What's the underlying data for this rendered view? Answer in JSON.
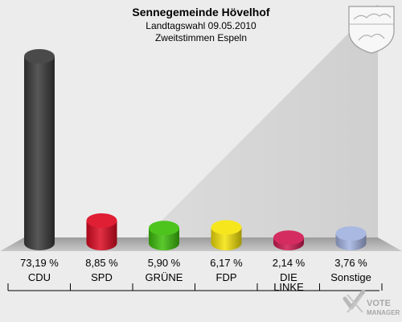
{
  "chart_data": {
    "type": "bar",
    "title": "Sennegemeinde Hövelhof",
    "subtitle": "Landtagswahl 09.05.2010",
    "subtitle2": "Zweitstimmen Espeln",
    "categories": [
      "CDU",
      "SPD",
      "GRÜNE",
      "FDP",
      "DIE LINKE",
      "Sonstige"
    ],
    "values": [
      73.19,
      8.85,
      5.9,
      6.17,
      2.14,
      3.76
    ],
    "value_labels": [
      "73,19 %",
      "8,85 %",
      "5,90 %",
      "6,17 %",
      "2,14 %",
      "3,76 %"
    ],
    "colors": [
      "#3a3a3a",
      "#dd0a22",
      "#3ebf0a",
      "#f5e40a",
      "#d01a52",
      "#a3b3e0"
    ],
    "ylim": [
      0,
      80
    ],
    "grid": false,
    "legend": "none"
  },
  "branding": {
    "watermark": "VOTE MANAGER",
    "crest_icon": "nrw-coat-of-arms"
  }
}
